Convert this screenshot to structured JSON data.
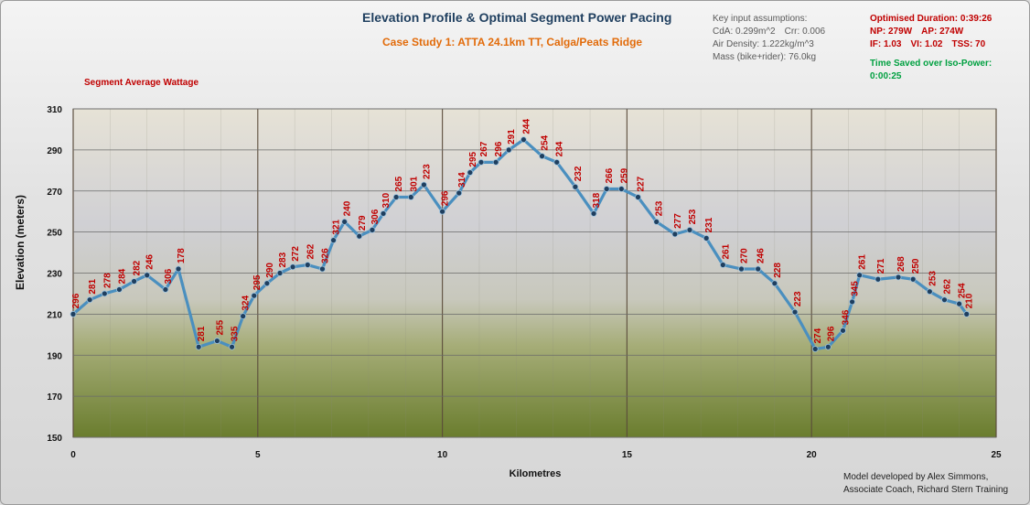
{
  "header": {
    "title": "Elevation Profile & Optimal Segment Power Pacing",
    "subtitle": "Case Study 1: ATTA 24.1km TT, Calga/Peats Ridge"
  },
  "segment_label": "Segment Average Wattage",
  "assumptions": {
    "heading": "Key input assumptions:",
    "cda": "CdA: 0.299m^2",
    "crr": "Crr: 0.006",
    "air_density": "Air Density: 1.222kg/m^3",
    "mass": "Mass (bike+rider): 76.0kg"
  },
  "results": {
    "duration": "Optimised Duration: 0:39:26",
    "np": "NP: 279W",
    "ap": "AP: 274W",
    "if": "IF: 1.03",
    "vi": "VI: 1.02",
    "tss": "TSS: 70"
  },
  "time_saved": {
    "label": "Time Saved over Iso-Power:",
    "value": "0:00:25"
  },
  "credit": {
    "line1": "Model developed by Alex Simmons,",
    "line2": "Associate Coach, Richard Stern Training"
  },
  "colors": {
    "line": "#4a8fbf",
    "marker": "#1f3f5f",
    "labels": "#c00000",
    "grid_major": "#5a4a3a",
    "grid_minor": "#8a8a7a"
  },
  "chart_data": {
    "type": "line",
    "xlabel": "Kilometres",
    "ylabel": "Elevation (meters)",
    "xlim": [
      0,
      25
    ],
    "ylim": [
      150,
      310
    ],
    "x_ticks": [
      "0",
      "5",
      "10",
      "15",
      "20",
      "25"
    ],
    "y_ticks": [
      "150",
      "170",
      "190",
      "210",
      "230",
      "250",
      "270",
      "290",
      "310"
    ],
    "grid": true,
    "series": [
      {
        "points": [
          {
            "x": 0,
            "y": 210,
            "label": "296"
          },
          {
            "x": 0.45,
            "y": 217,
            "label": "281"
          },
          {
            "x": 0.85,
            "y": 220,
            "label": "278"
          },
          {
            "x": 1.25,
            "y": 222,
            "label": "284"
          },
          {
            "x": 1.65,
            "y": 226,
            "label": "282"
          },
          {
            "x": 2.0,
            "y": 229,
            "label": "246"
          },
          {
            "x": 2.5,
            "y": 222,
            "label": "306"
          },
          {
            "x": 2.85,
            "y": 232,
            "label": "178"
          },
          {
            "x": 3.4,
            "y": 194,
            "label": "281"
          },
          {
            "x": 3.9,
            "y": 197,
            "label": "255"
          },
          {
            "x": 4.3,
            "y": 194,
            "label": "335"
          },
          {
            "x": 4.6,
            "y": 209,
            "label": "324"
          },
          {
            "x": 4.9,
            "y": 219,
            "label": "295"
          },
          {
            "x": 5.25,
            "y": 225,
            "label": "290"
          },
          {
            "x": 5.6,
            "y": 230,
            "label": "283"
          },
          {
            "x": 5.95,
            "y": 233,
            "label": "272"
          },
          {
            "x": 6.35,
            "y": 234,
            "label": "262"
          },
          {
            "x": 6.75,
            "y": 232,
            "label": "326"
          },
          {
            "x": 7.05,
            "y": 246,
            "label": "321"
          },
          {
            "x": 7.35,
            "y": 255,
            "label": "240"
          },
          {
            "x": 7.75,
            "y": 248,
            "label": "279"
          },
          {
            "x": 8.1,
            "y": 251,
            "label": "306"
          },
          {
            "x": 8.4,
            "y": 259,
            "label": "310"
          },
          {
            "x": 8.75,
            "y": 267,
            "label": "265"
          },
          {
            "x": 9.15,
            "y": 267,
            "label": "301"
          },
          {
            "x": 9.5,
            "y": 273,
            "label": "223"
          },
          {
            "x": 10.0,
            "y": 260,
            "label": "296"
          },
          {
            "x": 10.45,
            "y": 269,
            "label": "314"
          },
          {
            "x": 10.75,
            "y": 279,
            "label": "295"
          },
          {
            "x": 11.05,
            "y": 284,
            "label": "267"
          },
          {
            "x": 11.45,
            "y": 284,
            "label": "296"
          },
          {
            "x": 11.8,
            "y": 290,
            "label": "291"
          },
          {
            "x": 12.2,
            "y": 295,
            "label": "244"
          },
          {
            "x": 12.7,
            "y": 287,
            "label": "254"
          },
          {
            "x": 13.1,
            "y": 284,
            "label": "234"
          },
          {
            "x": 13.6,
            "y": 272,
            "label": "232"
          },
          {
            "x": 14.1,
            "y": 259,
            "label": "318"
          },
          {
            "x": 14.45,
            "y": 271,
            "label": "266"
          },
          {
            "x": 14.85,
            "y": 271,
            "label": "259"
          },
          {
            "x": 15.3,
            "y": 267,
            "label": "227"
          },
          {
            "x": 15.8,
            "y": 255,
            "label": "253"
          },
          {
            "x": 16.3,
            "y": 249,
            "label": "277"
          },
          {
            "x": 16.7,
            "y": 251,
            "label": "253"
          },
          {
            "x": 17.15,
            "y": 247,
            "label": "231"
          },
          {
            "x": 17.6,
            "y": 234,
            "label": "261"
          },
          {
            "x": 18.1,
            "y": 232,
            "label": "270"
          },
          {
            "x": 18.55,
            "y": 232,
            "label": "246"
          },
          {
            "x": 19.0,
            "y": 225,
            "label": "228"
          },
          {
            "x": 19.55,
            "y": 211,
            "label": "223"
          },
          {
            "x": 20.1,
            "y": 193,
            "label": "274"
          },
          {
            "x": 20.45,
            "y": 194,
            "label": "296"
          },
          {
            "x": 20.85,
            "y": 202,
            "label": "346"
          },
          {
            "x": 21.1,
            "y": 216,
            "label": "345"
          },
          {
            "x": 21.3,
            "y": 229,
            "label": "261"
          },
          {
            "x": 21.8,
            "y": 227,
            "label": "271"
          },
          {
            "x": 22.35,
            "y": 228,
            "label": "268"
          },
          {
            "x": 22.75,
            "y": 227,
            "label": "250"
          },
          {
            "x": 23.2,
            "y": 221,
            "label": "253"
          },
          {
            "x": 23.6,
            "y": 217,
            "label": "262"
          },
          {
            "x": 24.0,
            "y": 215,
            "label": "254"
          },
          {
            "x": 24.2,
            "y": 210,
            "label": "210"
          }
        ]
      }
    ]
  }
}
